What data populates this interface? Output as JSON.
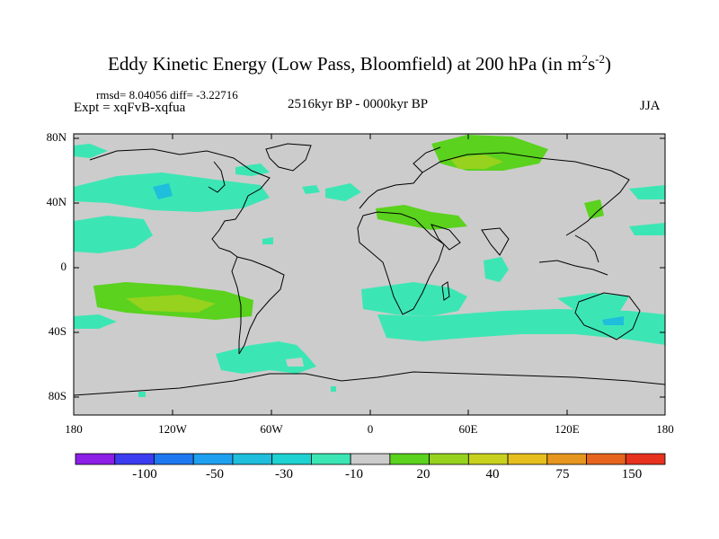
{
  "title": {
    "main": "Eddy Kinetic Energy (Low Pass, Bloomfield) at 200 hPa (in m",
    "sup1": "2",
    "mid": "s",
    "sup2": "-2",
    "end": ")"
  },
  "stats_line": "rmsd= 8.04056 diff= -3.22716",
  "expt_line": "Expt = xqFvB-xqfua",
  "period": "2516kyr BP - 0000kyr BP",
  "season": "JJA",
  "lat_labels": [
    "80N",
    "40N",
    "0",
    "40S",
    "80S"
  ],
  "lon_labels": [
    "180",
    "120W",
    "60W",
    "0",
    "60E",
    "120E",
    "180"
  ],
  "colorbar": {
    "labels": [
      "-100",
      "-50",
      "-30",
      "-10",
      "20",
      "40",
      "75",
      "150"
    ],
    "colors": [
      "#8c1ee6",
      "#3c3cf0",
      "#1e78f0",
      "#1ea0f0",
      "#1ebedc",
      "#1ed2d2",
      "#3ce6b4",
      "#cccccc",
      "#5ad21e",
      "#96d21e",
      "#c8d21e",
      "#e6be1e",
      "#e6961e",
      "#e6641e",
      "#e6321e"
    ]
  },
  "field_colors": {
    "land_bg": "#cccccc",
    "cyan": "#3ce6b4",
    "green": "#5ad21e",
    "light_green": "#96d21e",
    "blue": "#1ebedc"
  }
}
